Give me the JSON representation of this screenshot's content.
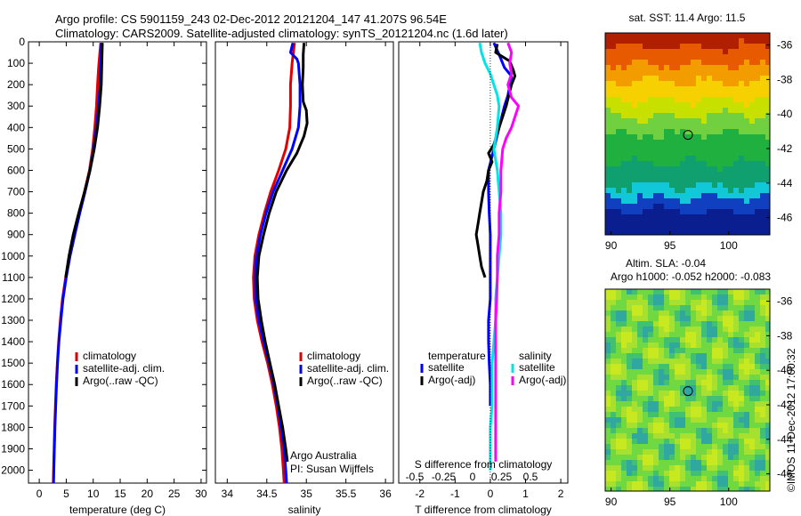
{
  "header": {
    "line1": "Argo profile: CS 5901159_243 02-Dec-2012 20121204_147 41.207S 96.54E",
    "line2": "Climatology: CARS2009. Satellite-adjusted climatology: synTS_20121204.nc (1.6d later)"
  },
  "colors": {
    "climatology": "#e00000",
    "satellite": "#0000ff",
    "argo": "#000000",
    "cyan": "#00e5e5",
    "magenta": "#ff00ff"
  },
  "chart_data": [
    {
      "type": "line",
      "id": "temperature",
      "xlabel": "temperature (deg C)",
      "xlim": [
        -2,
        31
      ],
      "ylim": [
        0,
        2060
      ],
      "xticks": [
        0,
        5,
        10,
        15,
        20,
        25,
        30
      ],
      "yticks": [
        0,
        100,
        200,
        300,
        400,
        500,
        600,
        700,
        800,
        900,
        1000,
        1100,
        1200,
        1300,
        1400,
        1500,
        1600,
        1700,
        1800,
        1900,
        2000
      ],
      "legend": [
        "climatology",
        "satellite-adj. clim.",
        "Argo(..raw -QC)"
      ],
      "series": [
        {
          "name": "climatology",
          "color": "#e00000",
          "points": [
            [
              11.4,
              5
            ],
            [
              11.2,
              60
            ],
            [
              11.0,
              120
            ],
            [
              10.8,
              200
            ],
            [
              10.6,
              300
            ],
            [
              10.3,
              400
            ],
            [
              9.9,
              500
            ],
            [
              9.3,
              600
            ],
            [
              8.4,
              700
            ],
            [
              7.4,
              800
            ],
            [
              6.5,
              900
            ],
            [
              5.6,
              1000
            ],
            [
              4.9,
              1100
            ],
            [
              4.3,
              1200
            ],
            [
              3.9,
              1300
            ],
            [
              3.6,
              1400
            ],
            [
              3.35,
              1500
            ],
            [
              3.15,
              1600
            ],
            [
              3.0,
              1700
            ],
            [
              2.85,
              1800
            ],
            [
              2.75,
              1900
            ],
            [
              2.65,
              2000
            ],
            [
              2.6,
              2060
            ]
          ]
        },
        {
          "name": "satellite-adj. clim.",
          "color": "#0000ff",
          "points": [
            [
              11.5,
              5
            ],
            [
              11.5,
              60
            ],
            [
              11.4,
              120
            ],
            [
              11.3,
              200
            ],
            [
              11.0,
              300
            ],
            [
              10.6,
              400
            ],
            [
              10.1,
              500
            ],
            [
              9.4,
              600
            ],
            [
              8.5,
              700
            ],
            [
              7.5,
              800
            ],
            [
              6.6,
              900
            ],
            [
              5.7,
              1000
            ],
            [
              5.0,
              1100
            ],
            [
              4.4,
              1200
            ],
            [
              4.0,
              1300
            ],
            [
              3.65,
              1400
            ],
            [
              3.4,
              1500
            ],
            [
              3.2,
              1600
            ],
            [
              3.05,
              1700
            ],
            [
              2.9,
              1800
            ],
            [
              2.8,
              1900
            ],
            [
              2.7,
              2000
            ],
            [
              2.65,
              2060
            ]
          ]
        },
        {
          "name": "Argo(..raw -QC)",
          "color": "#000000",
          "points": [
            [
              11.7,
              5
            ],
            [
              11.6,
              100
            ],
            [
              11.5,
              200
            ],
            [
              11.2,
              300
            ],
            [
              10.8,
              400
            ],
            [
              10.2,
              500
            ],
            [
              9.4,
              600
            ],
            [
              8.4,
              700
            ],
            [
              7.3,
              800
            ],
            [
              6.3,
              900
            ],
            [
              5.5,
              1000
            ],
            [
              4.9,
              1100
            ]
          ]
        }
      ]
    },
    {
      "type": "line",
      "id": "salinity",
      "xlabel": "salinity",
      "xlim": [
        33.85,
        36.1
      ],
      "ylim": [
        0,
        2060
      ],
      "xticks": [
        34,
        34.5,
        35,
        35.5,
        36
      ],
      "xticklabels": [
        "34",
        "34.5",
        "35",
        "35.5",
        "36"
      ],
      "legend": [
        "climatology",
        "satellite-adj. clim.",
        "Argo(..raw -QC)"
      ],
      "annotation": [
        "Argo Australia",
        "PI: Susan Wijffels"
      ],
      "series": [
        {
          "name": "climatology",
          "color": "#e00000",
          "points": [
            [
              34.85,
              5
            ],
            [
              34.82,
              100
            ],
            [
              34.8,
              200
            ],
            [
              34.8,
              300
            ],
            [
              34.79,
              400
            ],
            [
              34.74,
              500
            ],
            [
              34.65,
              600
            ],
            [
              34.55,
              700
            ],
            [
              34.47,
              800
            ],
            [
              34.4,
              900
            ],
            [
              34.35,
              1000
            ],
            [
              34.33,
              1100
            ],
            [
              34.34,
              1200
            ],
            [
              34.38,
              1300
            ],
            [
              34.44,
              1400
            ],
            [
              34.51,
              1500
            ],
            [
              34.57,
              1600
            ],
            [
              34.62,
              1700
            ],
            [
              34.66,
              1800
            ],
            [
              34.69,
              1900
            ],
            [
              34.71,
              2000
            ],
            [
              34.72,
              2060
            ]
          ]
        },
        {
          "name": "satellite-adj. clim.",
          "color": "#0000ff",
          "points": [
            [
              34.83,
              5
            ],
            [
              34.8,
              50
            ],
            [
              34.88,
              80
            ],
            [
              34.9,
              100
            ],
            [
              34.92,
              200
            ],
            [
              34.92,
              300
            ],
            [
              34.9,
              400
            ],
            [
              34.82,
              500
            ],
            [
              34.7,
              600
            ],
            [
              34.58,
              700
            ],
            [
              34.49,
              800
            ],
            [
              34.42,
              900
            ],
            [
              34.37,
              1000
            ],
            [
              34.35,
              1100
            ],
            [
              34.36,
              1200
            ],
            [
              34.4,
              1300
            ],
            [
              34.46,
              1400
            ],
            [
              34.53,
              1500
            ],
            [
              34.59,
              1600
            ],
            [
              34.64,
              1700
            ],
            [
              34.68,
              1800
            ],
            [
              34.72,
              1900
            ],
            [
              34.74,
              2000
            ],
            [
              34.75,
              2060
            ]
          ]
        },
        {
          "name": "Argo(..raw -QC)",
          "color": "#000000",
          "points": [
            [
              34.97,
              5
            ],
            [
              34.96,
              60
            ],
            [
              34.96,
              120
            ],
            [
              34.95,
              200
            ],
            [
              34.96,
              280
            ],
            [
              35.0,
              320
            ],
            [
              35.01,
              380
            ],
            [
              34.97,
              440
            ],
            [
              34.88,
              520
            ],
            [
              34.75,
              600
            ],
            [
              34.62,
              700
            ],
            [
              34.53,
              800
            ],
            [
              34.46,
              900
            ],
            [
              34.4,
              1000
            ],
            [
              34.38,
              1100
            ],
            [
              34.39,
              1200
            ],
            [
              34.43,
              1300
            ],
            [
              34.48,
              1400
            ],
            [
              34.54,
              1500
            ],
            [
              34.6,
              1600
            ],
            [
              34.65,
              1700
            ],
            [
              34.7,
              1800
            ],
            [
              34.74,
              1900
            ],
            [
              34.76,
              1960
            ]
          ]
        }
      ]
    },
    {
      "type": "line",
      "id": "difference",
      "xlabel": "T difference from climatology",
      "top_xlabel": "S difference from climatology",
      "xlim": [
        -2.6,
        2.2
      ],
      "ylim": [
        0,
        2060
      ],
      "xticks": [
        -2,
        -1,
        0,
        1,
        2
      ],
      "s_ticklabels": [
        "-0.5",
        "-0.25",
        "0",
        "0.25",
        "0.5"
      ],
      "legend": {
        "temperature": "temperature",
        "salinity": "salinity",
        "items": [
          "satellite",
          "Argo(-adj)",
          "satellite",
          "Argo(-adj)"
        ]
      },
      "series": [
        {
          "name": "temperature satellite",
          "color": "#0000ff",
          "points": [
            [
              0.1,
              5
            ],
            [
              0.25,
              60
            ],
            [
              0.4,
              120
            ],
            [
              0.6,
              160
            ],
            [
              0.5,
              250
            ],
            [
              0.4,
              300
            ],
            [
              0.25,
              400
            ],
            [
              0.1,
              500
            ],
            [
              -0.05,
              600
            ],
            [
              -0.05,
              700
            ],
            [
              -0.03,
              800
            ],
            [
              0.0,
              900
            ],
            [
              0.0,
              1000
            ],
            [
              0.0,
              1100
            ],
            [
              0.0,
              1200
            ],
            [
              -0.05,
              1300
            ],
            [
              -0.05,
              1400
            ],
            [
              -0.03,
              1500
            ],
            [
              0.0,
              1600
            ],
            [
              0.0,
              1700
            ]
          ]
        },
        {
          "name": "temperature Argo(-adj)",
          "color": "#000000",
          "points": [
            [
              0.2,
              10
            ],
            [
              0.15,
              50
            ],
            [
              0.55,
              90
            ],
            [
              0.65,
              130
            ],
            [
              0.7,
              160
            ],
            [
              0.6,
              200
            ],
            [
              0.45,
              300
            ],
            [
              0.25,
              400
            ],
            [
              0.1,
              480
            ],
            [
              -0.05,
              520
            ],
            [
              0.05,
              560
            ],
            [
              -0.05,
              600
            ],
            [
              -0.1,
              650
            ],
            [
              -0.2,
              700
            ],
            [
              -0.25,
              750
            ],
            [
              -0.3,
              800
            ],
            [
              -0.35,
              850
            ],
            [
              -0.4,
              900
            ],
            [
              -0.35,
              950
            ],
            [
              -0.3,
              1000
            ],
            [
              -0.25,
              1050
            ],
            [
              -0.15,
              1100
            ]
          ]
        },
        {
          "name": "salinity satellite",
          "color": "#00e5e5",
          "points": [
            [
              -0.3,
              5
            ],
            [
              -0.25,
              50
            ],
            [
              -0.15,
              100
            ],
            [
              0.0,
              150
            ],
            [
              0.2,
              250
            ],
            [
              0.25,
              300
            ],
            [
              0.2,
              400
            ],
            [
              0.1,
              500
            ],
            [
              0.2,
              600
            ],
            [
              0.25,
              700
            ],
            [
              0.3,
              800
            ],
            [
              0.3,
              900
            ],
            [
              0.25,
              1000
            ],
            [
              0.2,
              1100
            ],
            [
              0.15,
              1200
            ],
            [
              0.15,
              1300
            ],
            [
              0.1,
              1400
            ],
            [
              0.05,
              1500
            ],
            [
              0.05,
              1600
            ],
            [
              0.05,
              1700
            ],
            [
              0.0,
              1800
            ],
            [
              0.0,
              1900
            ],
            [
              0.0,
              2000
            ]
          ]
        },
        {
          "name": "salinity Argo(-adj)",
          "color": "#ff00ff",
          "points": [
            [
              0.5,
              5
            ],
            [
              0.6,
              50
            ],
            [
              0.55,
              100
            ],
            [
              0.6,
              150
            ],
            [
              0.5,
              200
            ],
            [
              0.6,
              260
            ],
            [
              0.8,
              300
            ],
            [
              0.7,
              350
            ],
            [
              0.6,
              400
            ],
            [
              0.45,
              450
            ],
            [
              0.35,
              500
            ],
            [
              0.3,
              600
            ],
            [
              0.3,
              700
            ],
            [
              0.25,
              800
            ],
            [
              0.25,
              900
            ],
            [
              0.2,
              1000
            ],
            [
              0.2,
              1100
            ],
            [
              0.18,
              1200
            ],
            [
              0.15,
              1300
            ],
            [
              0.15,
              1400
            ],
            [
              0.15,
              1500
            ],
            [
              0.15,
              1600
            ],
            [
              0.15,
              1700
            ],
            [
              0.15,
              1800
            ],
            [
              0.15,
              1900
            ],
            [
              0.15,
              1960
            ]
          ]
        }
      ]
    },
    {
      "type": "heatmap",
      "id": "sst_map",
      "title": "sat. SST: 11.4 Argo: 11.5",
      "xlim": [
        89.5,
        103.5
      ],
      "ylim": [
        -47,
        -35.3
      ],
      "xticks": [
        90,
        95,
        100
      ],
      "yticks": [
        -36,
        -38,
        -40,
        -42,
        -44,
        -46
      ],
      "marker": [
        96.54,
        -41.207
      ]
    },
    {
      "type": "heatmap",
      "id": "sla_map",
      "title": [
        "Altim. SLA: -0.04",
        "Argo h1000: -0.052 h2000: -0.083"
      ],
      "xlim": [
        89.5,
        103.5
      ],
      "ylim": [
        -47,
        -35.3
      ],
      "xticks": [
        90,
        95,
        100
      ],
      "yticks": [
        -36,
        -38,
        -40,
        -42,
        -44,
        -46
      ],
      "marker": [
        96.54,
        -41.207
      ]
    }
  ],
  "credit": "©IMOS 11-Dec-2012 17:00:32"
}
